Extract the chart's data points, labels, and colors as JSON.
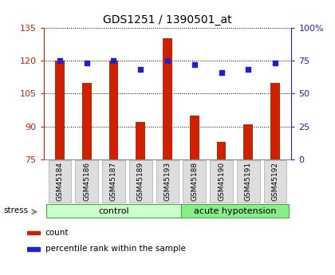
{
  "title": "GDS1251 / 1390501_at",
  "samples": [
    "GSM45184",
    "GSM45186",
    "GSM45187",
    "GSM45189",
    "GSM45193",
    "GSM45188",
    "GSM45190",
    "GSM45191",
    "GSM45192"
  ],
  "counts": [
    120,
    110,
    120,
    92,
    130,
    95,
    83,
    91,
    110
  ],
  "percentiles": [
    75,
    73,
    75,
    68,
    75,
    72,
    66,
    68,
    73
  ],
  "groups": [
    {
      "label": "control",
      "start": 0,
      "end": 5,
      "color": "#ccffcc"
    },
    {
      "label": "acute hypotension",
      "start": 5,
      "end": 9,
      "color": "#88ee88"
    }
  ],
  "ylim_left": [
    75,
    135
  ],
  "ylim_right": [
    0,
    100
  ],
  "yticks_left": [
    75,
    90,
    105,
    120,
    135
  ],
  "yticks_right": [
    0,
    25,
    50,
    75,
    100
  ],
  "bar_color": "#cc2200",
  "dot_color": "#2222cc",
  "bar_width": 0.35,
  "stress_label": "stress",
  "legend_items": [
    {
      "label": "count",
      "color": "#cc2200"
    },
    {
      "label": "percentile rank within the sample",
      "color": "#2222cc"
    }
  ],
  "tick_label_color_left": "#cc2200",
  "tick_label_color_right": "#2222cc",
  "plot_bg": "#ffffff",
  "bar_bg": "#dddddd",
  "ymin": 75
}
